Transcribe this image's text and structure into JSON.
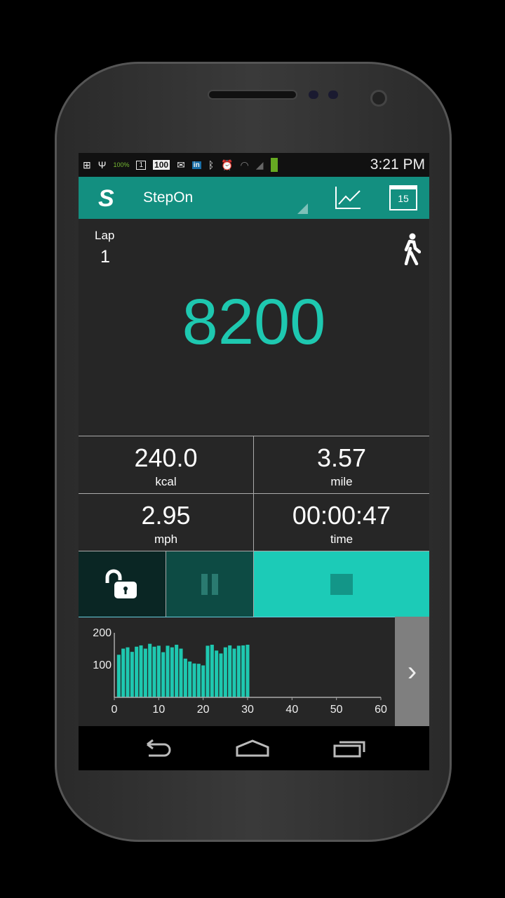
{
  "status_bar": {
    "time": "3:21 PM",
    "battery_small": "100%",
    "notif_calendar": "1",
    "notif_count": "100",
    "icons": [
      "add-icon",
      "usb-icon",
      "battery-icon",
      "calendar-icon",
      "count-icon",
      "mail-icon",
      "linkedin-icon",
      "bluetooth-icon",
      "alarm-icon",
      "wifi-icon",
      "signal-icon",
      "battery-icon"
    ]
  },
  "app_bar": {
    "logo": "S",
    "title": "StepOn",
    "actions": [
      "chart-icon",
      "calendar-icon"
    ],
    "calendar_day": "15",
    "accent": "#138f80"
  },
  "lap": {
    "label": "Lap",
    "value": "1"
  },
  "steps": "8200",
  "stats": [
    {
      "value": "240.0",
      "unit": "kcal"
    },
    {
      "value": "3.57",
      "unit": "mile"
    },
    {
      "value": "2.95",
      "unit": "mph"
    },
    {
      "value": "00:00:47",
      "unit": "time"
    }
  ],
  "controls": [
    "lock-open-icon",
    "pause-icon",
    "stop-icon"
  ],
  "chart_data": {
    "type": "bar",
    "x": [
      1,
      2,
      3,
      4,
      5,
      6,
      7,
      8,
      9,
      10,
      11,
      12,
      13,
      14,
      15,
      16,
      17,
      18,
      19,
      20,
      21,
      22,
      23,
      24,
      25,
      26,
      27,
      28,
      29,
      30
    ],
    "values": [
      132,
      151,
      155,
      141,
      157,
      161,
      151,
      166,
      157,
      160,
      140,
      160,
      155,
      163,
      151,
      120,
      111,
      105,
      104,
      99,
      160,
      163,
      145,
      136,
      155,
      161,
      151,
      160,
      161,
      163
    ],
    "xlim": [
      0,
      60
    ],
    "ylim": [
      0,
      200
    ],
    "xticks": [
      "0",
      "10",
      "20",
      "30",
      "40",
      "50",
      "60"
    ],
    "yticks": [
      "100",
      "200"
    ],
    "color": "#1ec8b0"
  },
  "colors": {
    "steps": "#1ec8b0",
    "stop": "#1ccbb7",
    "pause": "#0d4b44",
    "lock": "#0a2624"
  }
}
